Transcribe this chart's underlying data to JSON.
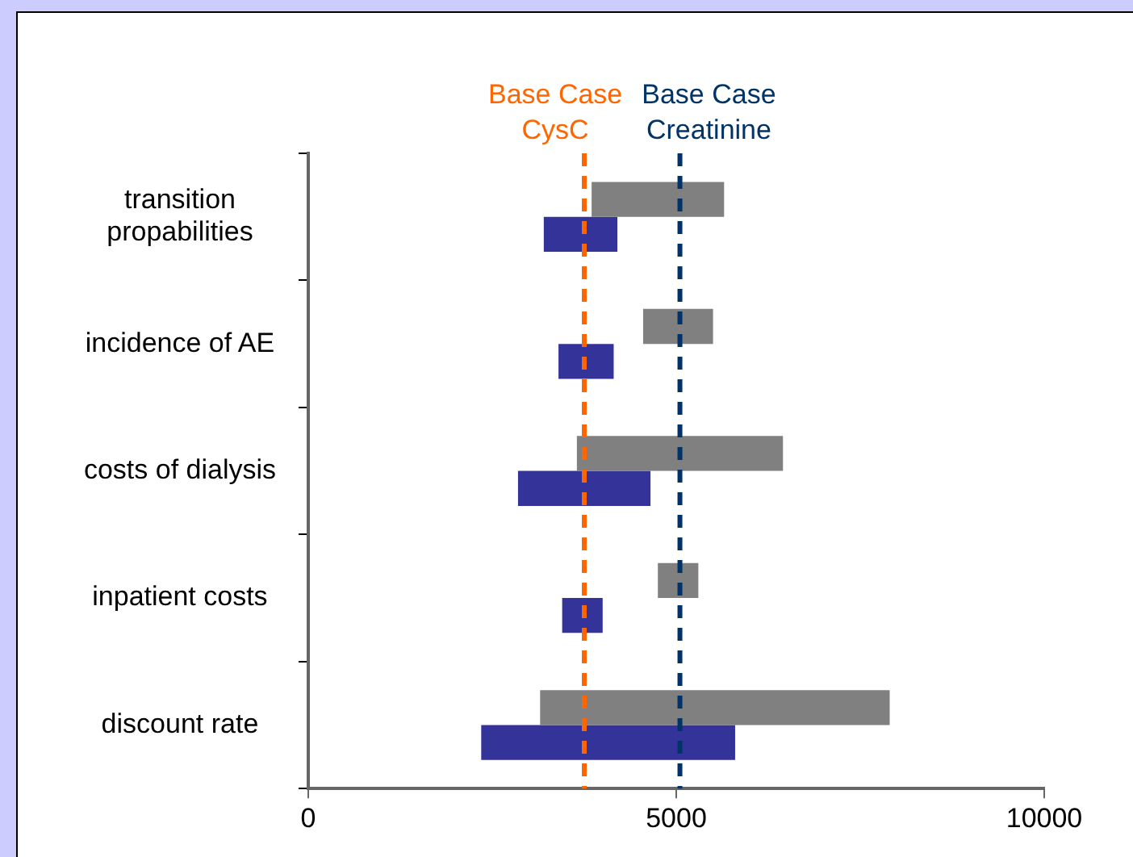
{
  "chart_data": {
    "type": "bar",
    "orientation": "horizontal",
    "categories": [
      "transition\npropabilities",
      "incidence of AE",
      "costs of dialysis",
      "inpatient costs",
      "discount rate"
    ],
    "series": [
      {
        "color": "#808080",
        "base": [
          3850,
          4550,
          3650,
          4750,
          3150
        ],
        "values": [
          1800,
          950,
          2800,
          550,
          4750
        ]
      },
      {
        "color": "#333399",
        "base": [
          3200,
          3400,
          2850,
          3450,
          2350
        ],
        "values": [
          1000,
          750,
          1800,
          550,
          3450
        ]
      }
    ],
    "xlim": [
      0,
      10000
    ],
    "xticks": [
      0,
      5000,
      10000
    ],
    "ref_lines": [
      {
        "axis": "x",
        "value": 3750,
        "label": "Base Case\nCysC",
        "color": "#ff6600",
        "line_style": "dashed"
      },
      {
        "axis": "x",
        "value": 5050,
        "label": "Base Case\nCreatinine",
        "color": "#003366",
        "line_style": "dashed"
      }
    ],
    "grid": false,
    "legend": false
  }
}
